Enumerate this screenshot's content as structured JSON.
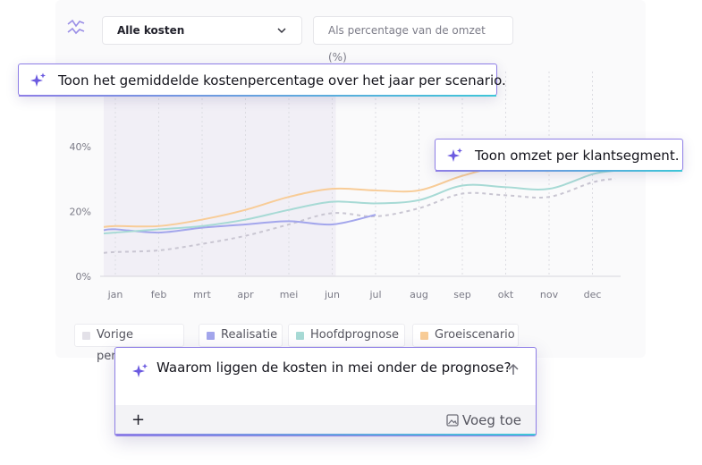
{
  "toolbar": {
    "filter_value": "Alle kosten",
    "metric_placeholder": "Als percentage van de omzet (%)"
  },
  "suggestions": [
    {
      "text": "Toon het gemiddelde kostenpercentage over het jaar per scenario."
    },
    {
      "text": "Toon omzet per klantsegment."
    }
  ],
  "chart_data": {
    "type": "line",
    "categories": [
      "jan",
      "feb",
      "mrt",
      "apr",
      "mei",
      "jun",
      "jul",
      "aug",
      "sep",
      "okt",
      "nov",
      "dec"
    ],
    "yticks": [
      "40%",
      "20%",
      "0%"
    ],
    "ylim": [
      0,
      45
    ],
    "highlight_range": [
      "jan",
      "jun"
    ],
    "grid": true,
    "series": [
      {
        "name": "Vorige periode",
        "color": "#c9c6d2",
        "dashed": true,
        "values": [
          7.5,
          8,
          10,
          12.5,
          16,
          19.5,
          18.5,
          21,
          25.5,
          25,
          24.5,
          29
        ]
      },
      {
        "name": "Realisatie",
        "color": "#a3a6ec",
        "dashed": false,
        "values": [
          14.5,
          13.5,
          15,
          16,
          17,
          16,
          19,
          null,
          null,
          null,
          null,
          null
        ]
      },
      {
        "name": "Hoofdprognose",
        "color": "#a7dad5",
        "dashed": false,
        "values": [
          13.5,
          14.5,
          15.5,
          17.5,
          20.5,
          23,
          22.5,
          23.5,
          28,
          27.5,
          27,
          31.5
        ]
      },
      {
        "name": "Groeiscenario",
        "color": "#f8cc97",
        "dashed": false,
        "values": [
          15.5,
          15.5,
          17.5,
          20.5,
          24.5,
          27,
          26.5,
          26.5,
          31,
          34,
          32.5,
          35
        ]
      }
    ]
  },
  "legend": [
    {
      "label": "Vorige periode",
      "color": "#e3e1e8"
    },
    {
      "label": "Realisatie",
      "color": "#a3a6ec"
    },
    {
      "label": "Hoofdprognose",
      "color": "#a7dad5"
    },
    {
      "label": "Groeiscenario",
      "color": "#f8cc97"
    }
  ],
  "chat": {
    "question": "Waarom liggen de kosten in mei onder de prognose?",
    "add_label": "Voeg toe"
  },
  "colors": {
    "accent": "#8e7ee6",
    "accent2": "#3ec6d8"
  }
}
